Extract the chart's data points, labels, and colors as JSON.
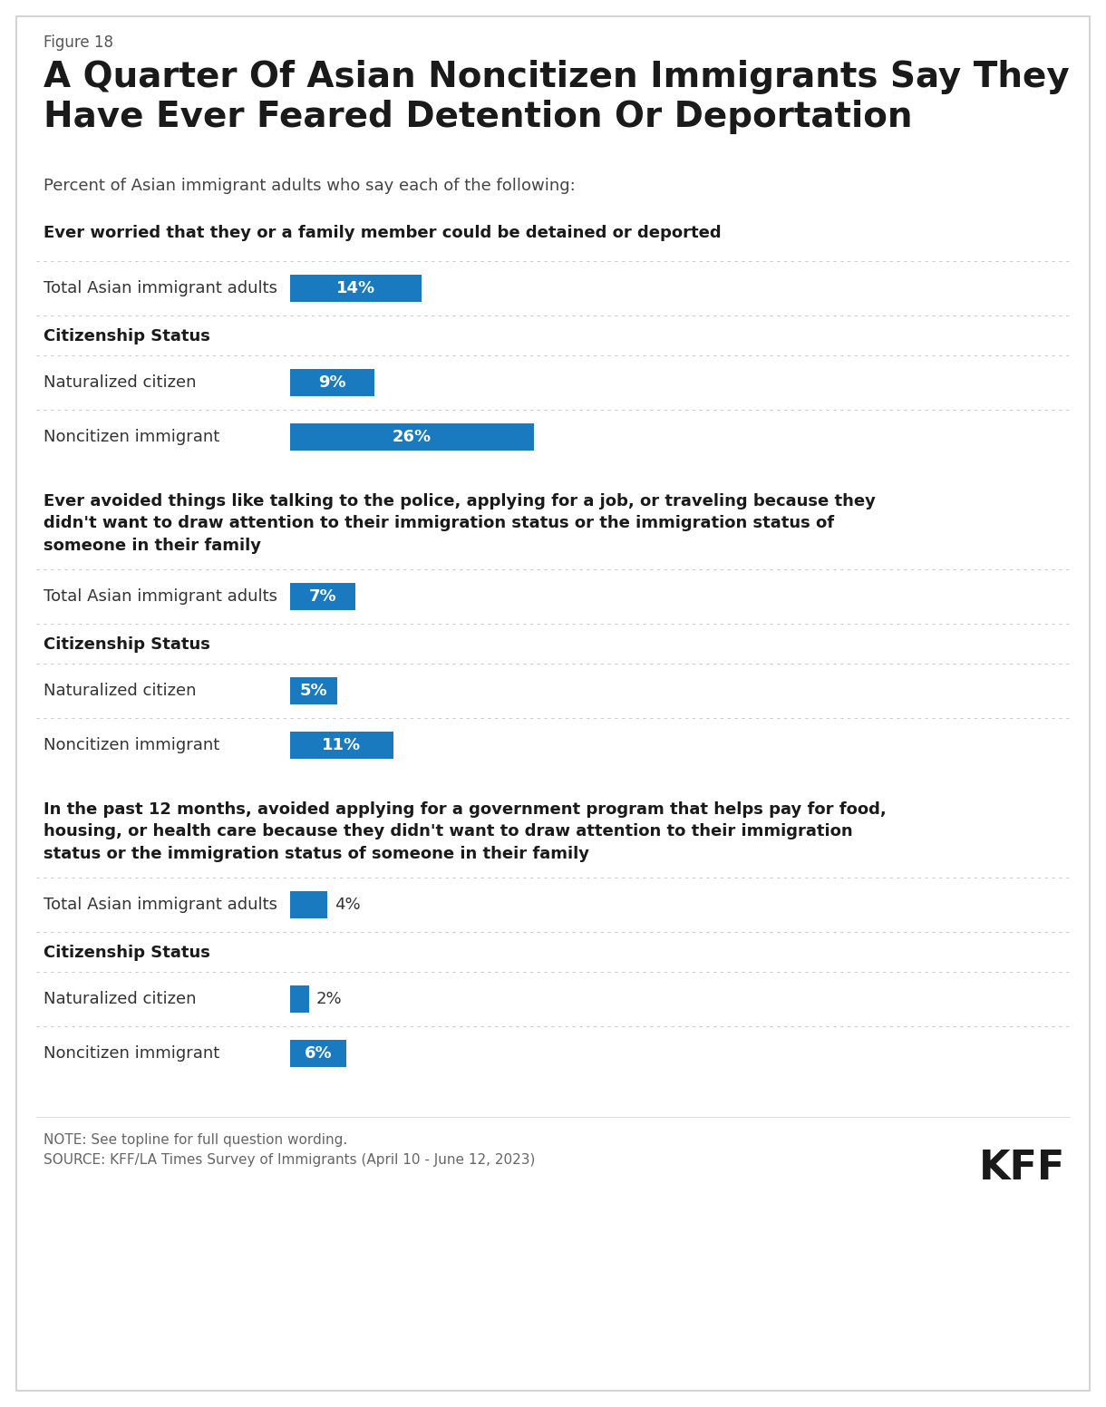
{
  "figure_label": "Figure 18",
  "title": "A Quarter Of Asian Noncitizen Immigrants Say They\nHave Ever Feared Detention Or Deportation",
  "subtitle": "Percent of Asian immigrant adults who say each of the following:",
  "background_color": "#ffffff",
  "bar_color": "#1a7abf",
  "sections": [
    {
      "section_title": "Ever worried that they or a family member could be detained or deported",
      "n_title_lines": 1,
      "rows": [
        {
          "label": "Total Asian immigrant adults",
          "value": 14,
          "is_header": false
        },
        {
          "label": "Citizenship Status",
          "value": null,
          "is_header": true
        },
        {
          "label": "Naturalized citizen",
          "value": 9,
          "is_header": false
        },
        {
          "label": "Noncitizen immigrant",
          "value": 26,
          "is_header": false
        }
      ]
    },
    {
      "section_title": "Ever avoided things like talking to the police, applying for a job, or traveling because they\ndidn't want to draw attention to their immigration status or the immigration status of\nsomeone in their family",
      "n_title_lines": 3,
      "rows": [
        {
          "label": "Total Asian immigrant adults",
          "value": 7,
          "is_header": false
        },
        {
          "label": "Citizenship Status",
          "value": null,
          "is_header": true
        },
        {
          "label": "Naturalized citizen",
          "value": 5,
          "is_header": false
        },
        {
          "label": "Noncitizen immigrant",
          "value": 11,
          "is_header": false
        }
      ]
    },
    {
      "section_title": "In the past 12 months, avoided applying for a government program that helps pay for food,\nhousing, or health care because they didn't want to draw attention to their immigration\nstatus or the immigration status of someone in their family",
      "n_title_lines": 3,
      "rows": [
        {
          "label": "Total Asian immigrant adults",
          "value": 4,
          "is_header": false
        },
        {
          "label": "Citizenship Status",
          "value": null,
          "is_header": true
        },
        {
          "label": "Naturalized citizen",
          "value": 2,
          "is_header": false
        },
        {
          "label": "Noncitizen immigrant",
          "value": 6,
          "is_header": false
        }
      ]
    }
  ],
  "note_line1": "NOTE: See topline for full question wording.",
  "note_line2": "SOURCE: KFF/LA Times Survey of Immigrants (April 10 - June 12, 2023)",
  "max_bar_value": 30,
  "fig_label_size": 12,
  "title_size": 28,
  "subtitle_size": 13,
  "section_title_size": 13,
  "row_label_size": 13,
  "bar_value_size": 13,
  "note_size": 11,
  "kff_size": 32
}
